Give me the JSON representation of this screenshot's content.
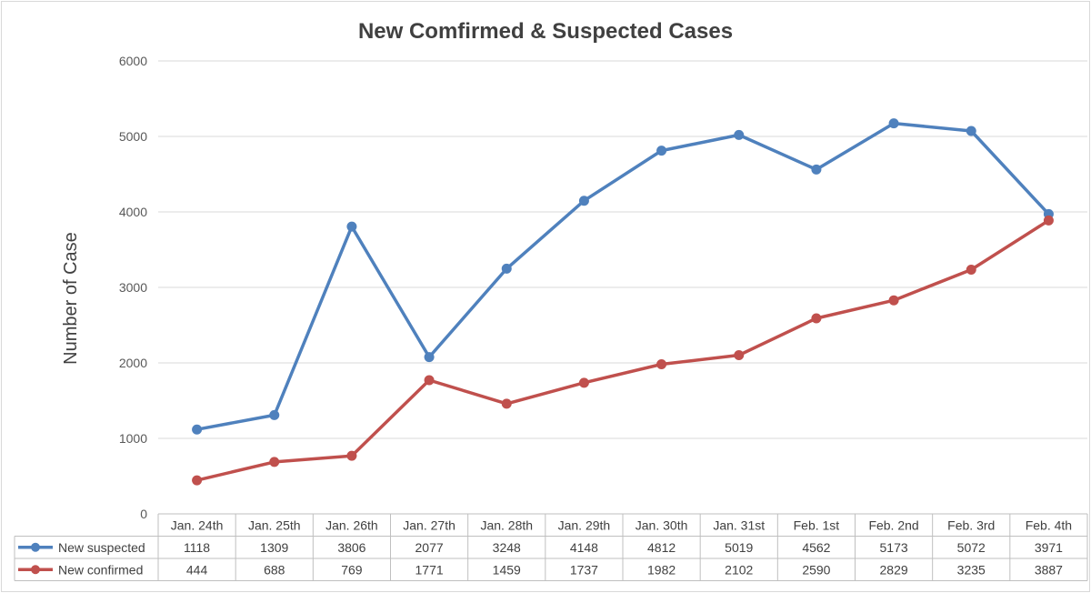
{
  "chart_data": {
    "type": "line",
    "title": "New Comfirmed & Suspected Cases",
    "xlabel": "",
    "ylabel": "Number of Case",
    "ylim": [
      0,
      6000
    ],
    "yticks": [
      0,
      1000,
      2000,
      3000,
      4000,
      5000,
      6000
    ],
    "grid": true,
    "legend": "data-table",
    "categories": [
      "Jan. 24th",
      "Jan. 25th",
      "Jan. 26th",
      "Jan. 27th",
      "Jan. 28th",
      "Jan. 29th",
      "Jan. 30th",
      "Jan. 31st",
      "Feb. 1st",
      "Feb. 2nd",
      "Feb. 3rd",
      "Feb. 4th"
    ],
    "series": [
      {
        "name": "New suspected",
        "color": "#4f81bd",
        "values": [
          1118,
          1309,
          3806,
          2077,
          3248,
          4148,
          4812,
          5019,
          4562,
          5173,
          5072,
          3971
        ]
      },
      {
        "name": "New confirmed",
        "color": "#c0504d",
        "values": [
          444,
          688,
          769,
          1771,
          1459,
          1737,
          1982,
          2102,
          2590,
          2829,
          3235,
          3887
        ]
      }
    ]
  }
}
